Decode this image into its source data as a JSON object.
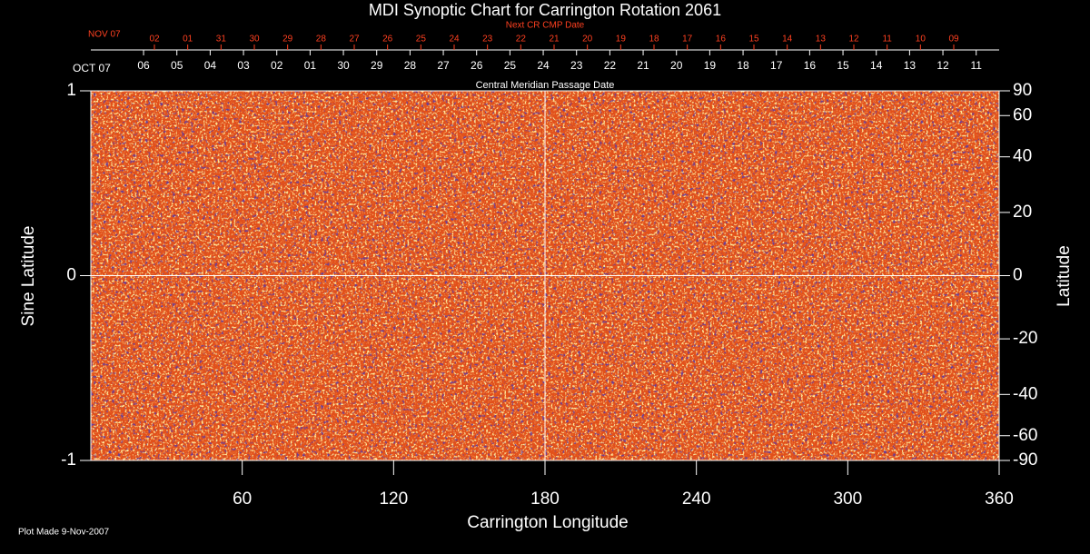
{
  "chart_data": {
    "type": "synoptic-map",
    "title": "MDI Synoptic Chart for Carrington Rotation 2061",
    "x_label": "Carrington Longitude",
    "y_label": "Sine Latitude",
    "y2_label": "Latitude",
    "top_label": "Central Meridian Passage Date",
    "top_start": "OCT 07",
    "top2_label": "Next CR CMP Date",
    "top2_start": "NOV 07",
    "footnote": "Plot Made  9-Nov-2007",
    "xlim": [
      0,
      360
    ],
    "xticks": [
      60,
      120,
      180,
      240,
      300,
      360
    ],
    "ylim": [
      -1,
      1
    ],
    "yticks": [
      -1,
      0,
      1
    ],
    "y2lim": [
      -90,
      90
    ],
    "y2scale": "sine",
    "y2ticks": [
      90,
      60,
      40,
      20,
      0,
      -20,
      -40,
      -60,
      -90
    ],
    "crosshair": {
      "x": 180,
      "y": 0
    },
    "top_ticks": [
      {
        "value": 20.9,
        "label": "06"
      },
      {
        "value": 34.1,
        "label": "05"
      },
      {
        "value": 47.3,
        "label": "04"
      },
      {
        "value": 60.5,
        "label": "03"
      },
      {
        "value": 73.7,
        "label": "02"
      },
      {
        "value": 86.9,
        "label": "01"
      },
      {
        "value": 100.1,
        "label": "30"
      },
      {
        "value": 113.3,
        "label": "29"
      },
      {
        "value": 126.5,
        "label": "28"
      },
      {
        "value": 139.7,
        "label": "27"
      },
      {
        "value": 152.9,
        "label": "26"
      },
      {
        "value": 166.1,
        "label": "25"
      },
      {
        "value": 179.3,
        "label": "24"
      },
      {
        "value": 192.5,
        "label": "23"
      },
      {
        "value": 205.7,
        "label": "22"
      },
      {
        "value": 218.9,
        "label": "21"
      },
      {
        "value": 232.1,
        "label": "20"
      },
      {
        "value": 245.3,
        "label": "19"
      },
      {
        "value": 258.5,
        "label": "18"
      },
      {
        "value": 271.7,
        "label": "17"
      },
      {
        "value": 284.9,
        "label": "16"
      },
      {
        "value": 298.1,
        "label": "15"
      },
      {
        "value": 311.3,
        "label": "14"
      },
      {
        "value": 324.5,
        "label": "13"
      },
      {
        "value": 337.7,
        "label": "12"
      },
      {
        "value": 350.9,
        "label": "11"
      }
    ],
    "top2_ticks": [
      {
        "value": 25.2,
        "label": "02"
      },
      {
        "value": 38.4,
        "label": "01"
      },
      {
        "value": 51.6,
        "label": "31"
      },
      {
        "value": 64.8,
        "label": "30"
      },
      {
        "value": 78.0,
        "label": "29"
      },
      {
        "value": 91.2,
        "label": "28"
      },
      {
        "value": 104.4,
        "label": "27"
      },
      {
        "value": 117.6,
        "label": "26"
      },
      {
        "value": 130.8,
        "label": "25"
      },
      {
        "value": 144.0,
        "label": "24"
      },
      {
        "value": 157.2,
        "label": "23"
      },
      {
        "value": 170.4,
        "label": "22"
      },
      {
        "value": 183.6,
        "label": "21"
      },
      {
        "value": 196.8,
        "label": "20"
      },
      {
        "value": 210.0,
        "label": "19"
      },
      {
        "value": 223.2,
        "label": "18"
      },
      {
        "value": 236.4,
        "label": "17"
      },
      {
        "value": 249.6,
        "label": "16"
      },
      {
        "value": 262.8,
        "label": "15"
      },
      {
        "value": 276.0,
        "label": "14"
      },
      {
        "value": 289.2,
        "label": "13"
      },
      {
        "value": 302.4,
        "label": "12"
      },
      {
        "value": 315.6,
        "label": "11"
      },
      {
        "value": 328.8,
        "label": "10"
      },
      {
        "value": 342.0,
        "label": "09"
      }
    ]
  }
}
